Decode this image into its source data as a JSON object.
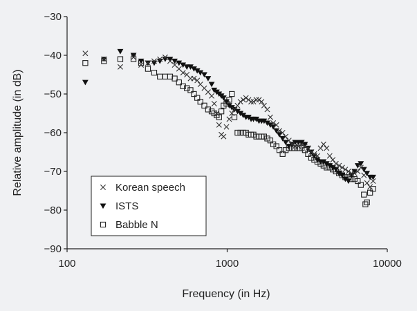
{
  "chart_data": {
    "type": "scatter",
    "title": "",
    "xlabel": "Frequency (in Hz)",
    "ylabel": "Relative amplitude (in dB)",
    "x_scale": "log",
    "xlim": [
      100,
      10000
    ],
    "ylim": [
      -90,
      -30
    ],
    "x_ticks": [
      100,
      1000,
      10000
    ],
    "x_tick_labels": [
      "100",
      "1000",
      "10000"
    ],
    "y_ticks": [
      -30,
      -40,
      -50,
      -60,
      -70,
      -80,
      -90
    ],
    "y_tick_labels": [
      "−30",
      "−40",
      "−50",
      "−60",
      "−70",
      "−80",
      "−90"
    ],
    "grid": false,
    "legend_position": "bottom-left",
    "series": [
      {
        "name": "Korean speech",
        "marker": "x",
        "color": "#333333",
        "points": [
          [
            130,
            -39.5
          ],
          [
            170,
            -41
          ],
          [
            215,
            -43
          ],
          [
            260,
            -40.5
          ],
          [
            290,
            -42.5
          ],
          [
            320,
            -42
          ],
          [
            350,
            -41.5
          ],
          [
            380,
            -41
          ],
          [
            410,
            -40.5
          ],
          [
            440,
            -41.5
          ],
          [
            470,
            -42.5
          ],
          [
            500,
            -43.5
          ],
          [
            530,
            -44.5
          ],
          [
            560,
            -45
          ],
          [
            590,
            -46
          ],
          [
            620,
            -46
          ],
          [
            650,
            -46.5
          ],
          [
            680,
            -47.5
          ],
          [
            720,
            -48.5
          ],
          [
            760,
            -49.5
          ],
          [
            800,
            -50.5
          ],
          [
            830,
            -52.5
          ],
          [
            860,
            -55
          ],
          [
            890,
            -58
          ],
          [
            920,
            -60.5
          ],
          [
            950,
            -61
          ],
          [
            990,
            -58.5
          ],
          [
            1030,
            -56.5
          ],
          [
            1070,
            -55
          ],
          [
            1110,
            -54
          ],
          [
            1160,
            -53
          ],
          [
            1210,
            -52
          ],
          [
            1260,
            -51.5
          ],
          [
            1310,
            -51
          ],
          [
            1360,
            -51.5
          ],
          [
            1410,
            -52
          ],
          [
            1460,
            -52
          ],
          [
            1520,
            -51.5
          ],
          [
            1580,
            -51.5
          ],
          [
            1640,
            -52
          ],
          [
            1700,
            -53
          ],
          [
            1780,
            -54
          ],
          [
            1860,
            -56
          ],
          [
            1940,
            -57.5
          ],
          [
            2030,
            -58
          ],
          [
            2120,
            -59.5
          ],
          [
            2220,
            -60
          ],
          [
            2320,
            -61
          ],
          [
            2430,
            -62
          ],
          [
            2540,
            -63
          ],
          [
            2660,
            -63.5
          ],
          [
            2790,
            -63.5
          ],
          [
            2920,
            -63
          ],
          [
            3060,
            -63.5
          ],
          [
            3200,
            -64
          ],
          [
            3350,
            -65
          ],
          [
            3500,
            -65.5
          ],
          [
            3660,
            -66
          ],
          [
            3830,
            -64
          ],
          [
            4000,
            -63
          ],
          [
            4180,
            -64
          ],
          [
            4370,
            -66
          ],
          [
            4570,
            -67
          ],
          [
            4780,
            -68
          ],
          [
            5000,
            -68.5
          ],
          [
            5230,
            -69
          ],
          [
            5470,
            -69.5
          ],
          [
            5720,
            -70
          ],
          [
            5980,
            -70.5
          ],
          [
            6250,
            -70.5
          ],
          [
            6540,
            -70
          ],
          [
            6840,
            -69
          ],
          [
            7150,
            -71
          ],
          [
            7470,
            -73
          ],
          [
            7810,
            -74
          ],
          [
            8160,
            -72.5
          ]
        ]
      },
      {
        "name": "ISTS",
        "marker": "triangle-down",
        "color": "#111111",
        "points": [
          [
            130,
            -47
          ],
          [
            170,
            -41
          ],
          [
            215,
            -39
          ],
          [
            260,
            -40
          ],
          [
            290,
            -41.5
          ],
          [
            320,
            -42
          ],
          [
            350,
            -42
          ],
          [
            380,
            -41.5
          ],
          [
            410,
            -41
          ],
          [
            440,
            -41
          ],
          [
            470,
            -41.5
          ],
          [
            500,
            -42
          ],
          [
            530,
            -42.5
          ],
          [
            560,
            -43
          ],
          [
            590,
            -43
          ],
          [
            620,
            -43.5
          ],
          [
            650,
            -44
          ],
          [
            680,
            -44.5
          ],
          [
            720,
            -45
          ],
          [
            760,
            -46
          ],
          [
            800,
            -47.5
          ],
          [
            830,
            -49
          ],
          [
            860,
            -49.5
          ],
          [
            890,
            -50
          ],
          [
            920,
            -50.5
          ],
          [
            950,
            -51
          ],
          [
            990,
            -52
          ],
          [
            1030,
            -53
          ],
          [
            1070,
            -53.5
          ],
          [
            1110,
            -54
          ],
          [
            1160,
            -54.5
          ],
          [
            1210,
            -55
          ],
          [
            1260,
            -55.5
          ],
          [
            1310,
            -56
          ],
          [
            1360,
            -56
          ],
          [
            1410,
            -56.5
          ],
          [
            1460,
            -56.5
          ],
          [
            1520,
            -56.5
          ],
          [
            1580,
            -57
          ],
          [
            1640,
            -57
          ],
          [
            1700,
            -57
          ],
          [
            1780,
            -57.5
          ],
          [
            1860,
            -58
          ],
          [
            1940,
            -58.5
          ],
          [
            2030,
            -59.5
          ],
          [
            2120,
            -60.5
          ],
          [
            2220,
            -61.5
          ],
          [
            2320,
            -62.5
          ],
          [
            2430,
            -63.5
          ],
          [
            2540,
            -63
          ],
          [
            2660,
            -62.5
          ],
          [
            2790,
            -62.5
          ],
          [
            2920,
            -62.5
          ],
          [
            3060,
            -63
          ],
          [
            3200,
            -64
          ],
          [
            3350,
            -65
          ],
          [
            3500,
            -66
          ],
          [
            3660,
            -67
          ],
          [
            3830,
            -67.5
          ],
          [
            4000,
            -67.5
          ],
          [
            4180,
            -68
          ],
          [
            4370,
            -68.5
          ],
          [
            4570,
            -69
          ],
          [
            4780,
            -69.5
          ],
          [
            5000,
            -70.5
          ],
          [
            5230,
            -71
          ],
          [
            5470,
            -72
          ],
          [
            5720,
            -72.5
          ],
          [
            5980,
            -71
          ],
          [
            6250,
            -70
          ],
          [
            6540,
            -68.5
          ],
          [
            6840,
            -68
          ],
          [
            7150,
            -69.5
          ],
          [
            7470,
            -70.5
          ],
          [
            7810,
            -71.5
          ],
          [
            8160,
            -71.5
          ]
        ]
      },
      {
        "name": "Babble N",
        "marker": "square",
        "color": "#222222",
        "points": [
          [
            130,
            -42
          ],
          [
            170,
            -41.5
          ],
          [
            215,
            -41
          ],
          [
            260,
            -41
          ],
          [
            290,
            -42
          ],
          [
            320,
            -43.5
          ],
          [
            350,
            -44.5
          ],
          [
            380,
            -45.5
          ],
          [
            410,
            -45.5
          ],
          [
            440,
            -45.5
          ],
          [
            470,
            -46
          ],
          [
            500,
            -47
          ],
          [
            530,
            -48
          ],
          [
            560,
            -48.5
          ],
          [
            590,
            -49
          ],
          [
            620,
            -50
          ],
          [
            650,
            -51
          ],
          [
            680,
            -52
          ],
          [
            720,
            -53
          ],
          [
            760,
            -54
          ],
          [
            800,
            -54.5
          ],
          [
            830,
            -55
          ],
          [
            860,
            -55.5
          ],
          [
            890,
            -56
          ],
          [
            920,
            -54.5
          ],
          [
            950,
            -53
          ],
          [
            990,
            -52.5
          ],
          [
            1030,
            -51.5
          ],
          [
            1070,
            -50
          ],
          [
            1110,
            -56
          ],
          [
            1160,
            -60
          ],
          [
            1210,
            -60
          ],
          [
            1260,
            -60
          ],
          [
            1310,
            -60
          ],
          [
            1360,
            -60.5
          ],
          [
            1410,
            -60.5
          ],
          [
            1460,
            -60.5
          ],
          [
            1520,
            -61
          ],
          [
            1580,
            -61
          ],
          [
            1640,
            -61
          ],
          [
            1700,
            -61
          ],
          [
            1780,
            -61.5
          ],
          [
            1860,
            -62
          ],
          [
            1940,
            -63
          ],
          [
            2030,
            -63.5
          ],
          [
            2120,
            -64.5
          ],
          [
            2220,
            -65.5
          ],
          [
            2320,
            -64.5
          ],
          [
            2430,
            -64
          ],
          [
            2540,
            -64
          ],
          [
            2660,
            -64
          ],
          [
            2790,
            -64
          ],
          [
            2920,
            -64
          ],
          [
            3060,
            -64.5
          ],
          [
            3200,
            -65.5
          ],
          [
            3350,
            -66.5
          ],
          [
            3500,
            -67
          ],
          [
            3660,
            -67.5
          ],
          [
            3830,
            -68
          ],
          [
            4000,
            -68.5
          ],
          [
            4180,
            -69
          ],
          [
            4370,
            -69
          ],
          [
            4570,
            -69.5
          ],
          [
            4780,
            -70
          ],
          [
            5000,
            -70.5
          ],
          [
            5230,
            -71
          ],
          [
            5470,
            -71.5
          ],
          [
            5720,
            -71.5
          ],
          [
            5980,
            -72
          ],
          [
            6250,
            -72
          ],
          [
            6540,
            -72.5
          ],
          [
            6840,
            -73.5
          ],
          [
            7150,
            -76
          ],
          [
            7300,
            -78.5
          ],
          [
            7470,
            -78
          ],
          [
            7810,
            -75.5
          ],
          [
            8160,
            -74.5
          ]
        ]
      }
    ]
  }
}
